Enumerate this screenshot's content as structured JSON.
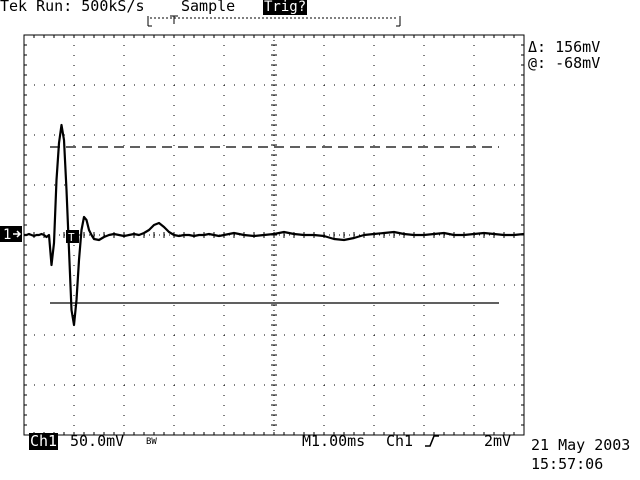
{
  "header": {
    "brand": "Tek",
    "run_state": "Run: 500kS/s",
    "acq_mode": "Sample",
    "trigger_status": "Trig?"
  },
  "cursor_readout": {
    "delta": "Δ: 156mV",
    "at": "@: -68mV"
  },
  "footer": {
    "channel": "Ch1",
    "volts_per_div": "50.0mV",
    "bw_limit": "BW",
    "timebase": "M1.00ms",
    "trigger_source": "Ch1",
    "trigger_slope_icon": "rising-edge-icon",
    "trigger_level": "2mV",
    "date": "21 May 2003",
    "time": "15:57:06"
  },
  "channel_marker": "1",
  "trigger_marker": "T",
  "chart_data": {
    "type": "line",
    "grid": true,
    "divisions": {
      "horizontal": 10,
      "vertical": 8
    },
    "volts_per_div_mV": 50,
    "time_per_div_ms": 1.0,
    "series": [
      {
        "x": [
          0,
          0.05,
          0.1,
          0.15,
          0.2,
          0.25,
          0.3,
          0.35,
          0.4,
          0.45,
          0.5,
          0.55,
          0.6,
          0.65,
          0.7,
          0.75,
          0.8,
          0.85,
          0.9,
          0.95,
          1.0,
          1.05,
          1.1,
          1.15,
          1.2,
          1.25,
          1.3,
          1.35,
          1.4,
          1.5,
          1.6,
          1.7,
          1.8,
          1.9,
          2.0,
          2.1,
          2.2,
          2.3,
          2.4,
          2.5,
          2.6,
          2.7,
          2.8,
          2.9,
          3.0,
          3.1,
          3.2,
          3.3,
          3.4,
          3.5,
          3.6,
          3.7,
          3.8,
          3.9,
          4.0,
          4.2,
          4.4,
          4.6,
          4.8,
          5.0,
          5.2,
          5.4,
          5.6,
          5.8,
          6.0,
          6.2,
          6.4,
          6.6,
          6.8,
          7.0,
          7.2,
          7.4,
          7.6,
          7.8,
          8.0,
          8.2,
          8.4,
          8.6,
          8.8,
          9.0,
          9.2,
          9.4,
          9.6,
          9.8,
          10.0
        ],
        "y": [
          0,
          0,
          1,
          0,
          -1,
          0,
          0,
          1,
          0,
          -2,
          0,
          -30,
          -8,
          55,
          92,
          110,
          95,
          45,
          -15,
          -75,
          -90,
          -65,
          -25,
          5,
          18,
          15,
          5,
          0,
          -4,
          -5,
          -2,
          0,
          1,
          0,
          -1,
          0,
          1,
          0,
          2,
          5,
          10,
          12,
          8,
          3,
          0,
          -1,
          0,
          0,
          -1,
          0,
          0,
          1,
          0,
          -1,
          0,
          2,
          0,
          -1,
          0,
          1,
          3,
          1,
          0,
          0,
          -1,
          -4,
          -5,
          -3,
          0,
          1,
          2,
          3,
          1,
          0,
          0,
          1,
          2,
          0,
          0,
          1,
          2,
          1,
          0,
          0,
          1
        ]
      }
    ],
    "cursors": {
      "delta_mV": 156,
      "at_mV": -68,
      "upper_mV": 88,
      "lower_mV": -68
    }
  }
}
